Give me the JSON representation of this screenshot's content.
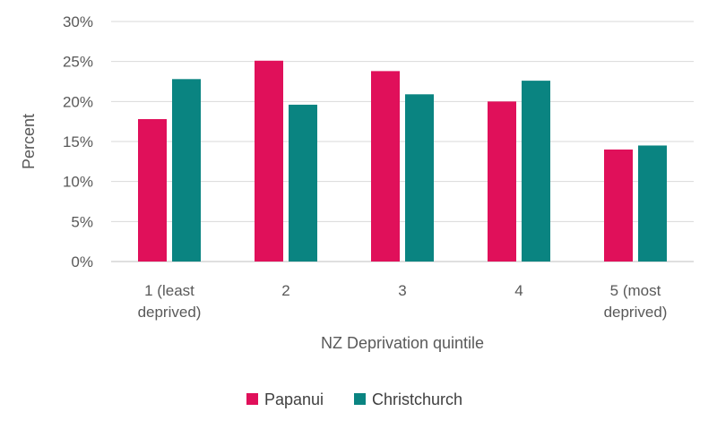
{
  "chart_data": {
    "type": "bar",
    "title": "",
    "xlabel": "NZ Deprivation quintile",
    "ylabel": "Percent",
    "categories": [
      [
        "1 (least",
        "deprived)"
      ],
      [
        "2"
      ],
      [
        "3"
      ],
      [
        "4"
      ],
      [
        "5 (most",
        "deprived)"
      ]
    ],
    "series": [
      {
        "name": "Papanui",
        "color": "#E0105A",
        "values": [
          17.8,
          25.1,
          23.8,
          20.0,
          14.0
        ]
      },
      {
        "name": "Christchurch",
        "color": "#0A8481",
        "values": [
          22.8,
          19.6,
          20.9,
          22.6,
          14.5
        ]
      }
    ],
    "ylim": [
      0,
      30
    ],
    "yticks": [
      "0%",
      "5%",
      "10%",
      "15%",
      "20%",
      "25%",
      "30%"
    ],
    "grid": true,
    "legend": "bottom-center"
  }
}
